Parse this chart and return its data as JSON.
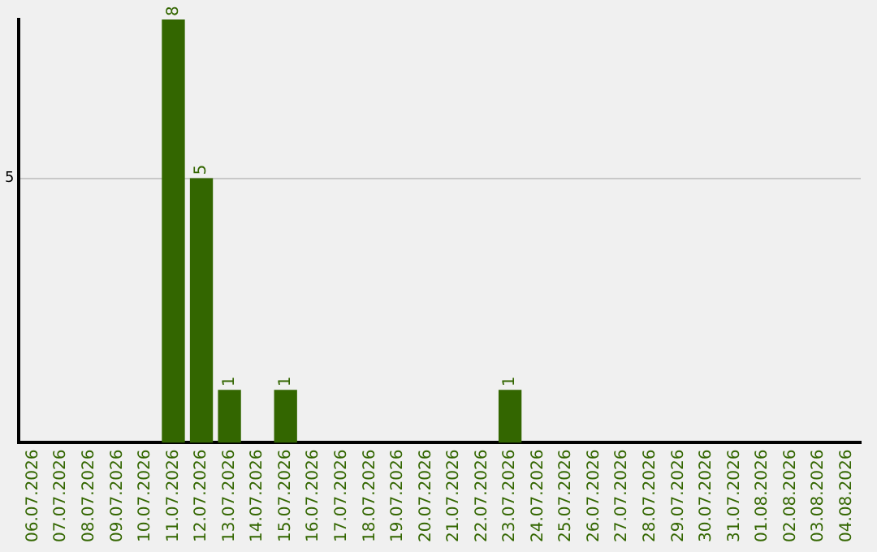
{
  "chart_data": {
    "type": "bar",
    "categories": [
      "06.07.2026",
      "07.07.2026",
      "08.07.2026",
      "09.07.2026",
      "10.07.2026",
      "11.07.2026",
      "12.07.2026",
      "13.07.2026",
      "14.07.2026",
      "15.07.2026",
      "16.07.2026",
      "17.07.2026",
      "18.07.2026",
      "19.07.2026",
      "20.07.2026",
      "21.07.2026",
      "22.07.2026",
      "23.07.2026",
      "24.07.2026",
      "25.07.2026",
      "26.07.2026",
      "27.07.2026",
      "28.07.2026",
      "29.07.2026",
      "30.07.2026",
      "31.07.2026",
      "01.08.2026",
      "02.08.2026",
      "03.08.2026",
      "04.08.2026"
    ],
    "values": [
      0,
      0,
      0,
      0,
      0,
      8,
      5,
      1,
      0,
      1,
      0,
      0,
      0,
      0,
      0,
      0,
      0,
      1,
      0,
      0,
      0,
      0,
      0,
      0,
      0,
      0,
      0,
      0,
      0,
      0
    ],
    "value_labels": [
      null,
      null,
      null,
      null,
      null,
      "8",
      "5",
      "1",
      null,
      "1",
      null,
      null,
      null,
      null,
      null,
      null,
      null,
      "1",
      null,
      null,
      null,
      null,
      null,
      null,
      null,
      null,
      null,
      null,
      null,
      null
    ],
    "color": "#336600",
    "ylim": [
      0,
      8
    ],
    "yticks": [
      5
    ],
    "grid": "y",
    "legend": false
  }
}
